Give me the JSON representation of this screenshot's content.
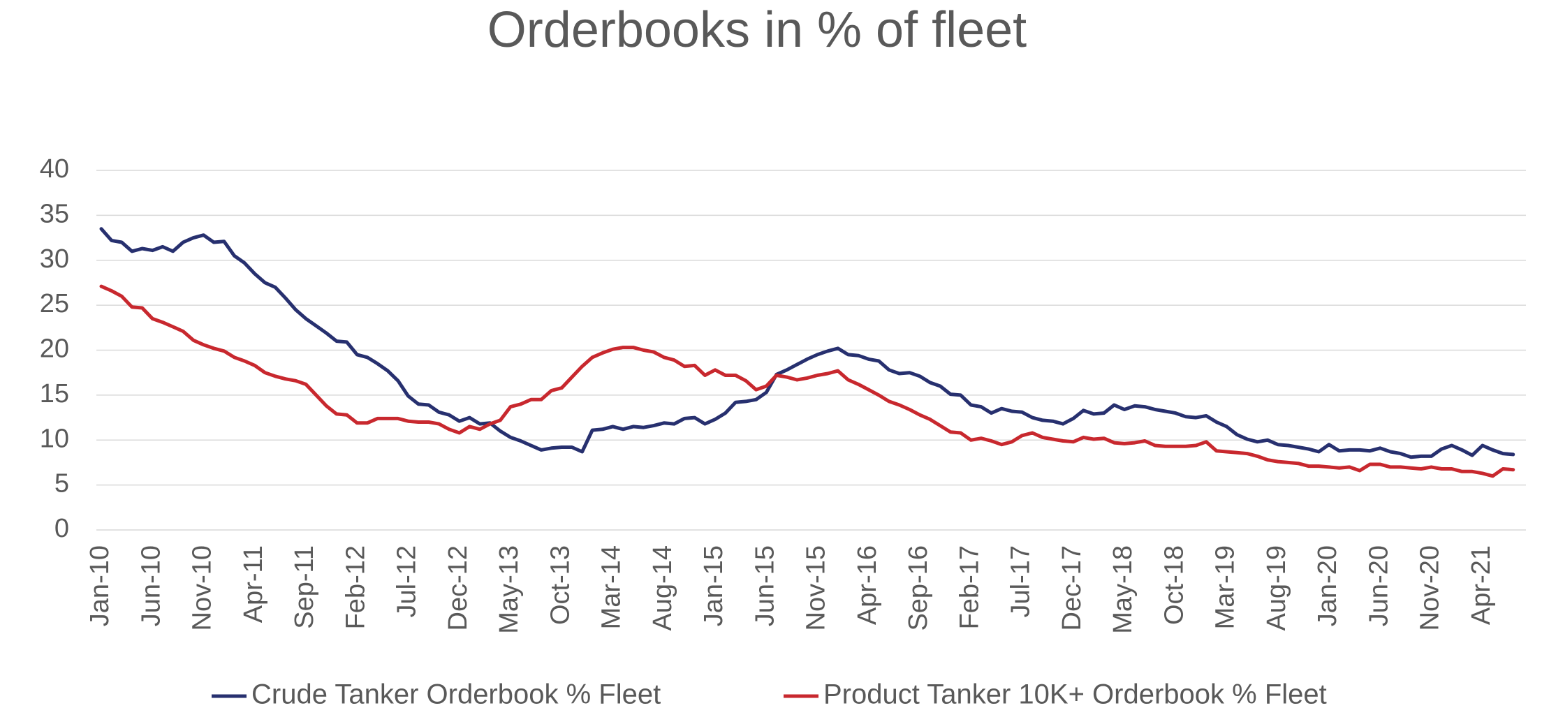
{
  "chart_data": {
    "type": "line",
    "title": "Orderbooks in % of fleet",
    "categories": [
      "Jan-10",
      null,
      null,
      null,
      null,
      "Jun-10",
      null,
      null,
      null,
      null,
      "Nov-10",
      null,
      null,
      null,
      null,
      "Apr-11",
      null,
      null,
      null,
      null,
      "Sep-11",
      null,
      null,
      null,
      null,
      "Feb-12",
      null,
      null,
      null,
      null,
      "Jul-12",
      null,
      null,
      null,
      null,
      "Dec-12",
      null,
      null,
      null,
      null,
      "May-13",
      null,
      null,
      null,
      null,
      "Oct-13",
      null,
      null,
      null,
      null,
      "Mar-14",
      null,
      null,
      null,
      null,
      "Aug-14",
      null,
      null,
      null,
      null,
      "Jan-15",
      null,
      null,
      null,
      null,
      "Jun-15",
      null,
      null,
      null,
      null,
      "Nov-15",
      null,
      null,
      null,
      null,
      "Apr-16",
      null,
      null,
      null,
      null,
      "Sep-16",
      null,
      null,
      null,
      null,
      "Feb-17",
      null,
      null,
      null,
      null,
      "Jul-17",
      null,
      null,
      null,
      null,
      "Dec-17",
      null,
      null,
      null,
      null,
      "May-18",
      null,
      null,
      null,
      null,
      "Oct-18",
      null,
      null,
      null,
      null,
      "Mar-19",
      null,
      null,
      null,
      null,
      "Aug-19",
      null,
      null,
      null,
      null,
      "Jan-20",
      null,
      null,
      null,
      null,
      "Jun-20",
      null,
      null,
      null,
      null,
      "Nov-20",
      null,
      null,
      null,
      null,
      "Apr-21",
      null,
      null,
      null
    ],
    "series": [
      {
        "name": "Crude Tanker Orderbook % Fleet",
        "color": "#27306f",
        "values": [
          33.5,
          32.2,
          32.0,
          31.0,
          31.3,
          31.1,
          31.5,
          31.0,
          32.0,
          32.5,
          32.8,
          32.0,
          32.1,
          30.5,
          29.7,
          28.5,
          27.5,
          27.0,
          25.8,
          24.5,
          23.5,
          22.7,
          21.9,
          21.0,
          20.9,
          19.5,
          19.2,
          18.5,
          17.7,
          16.6,
          14.9,
          14.0,
          13.9,
          13.1,
          12.8,
          12.1,
          12.5,
          11.8,
          11.9,
          11.0,
          10.3,
          9.9,
          9.4,
          8.9,
          9.1,
          9.2,
          9.2,
          8.7,
          11.1,
          11.2,
          11.5,
          11.2,
          11.5,
          11.4,
          11.6,
          11.9,
          11.8,
          12.4,
          12.5,
          11.8,
          12.3,
          13.0,
          14.2,
          14.3,
          14.5,
          15.3,
          17.3,
          17.8,
          18.4,
          19.0,
          19.5,
          19.9,
          20.2,
          19.5,
          19.4,
          19.0,
          18.8,
          17.8,
          17.4,
          17.5,
          17.1,
          16.4,
          16.0,
          15.1,
          15.0,
          13.9,
          13.7,
          13.0,
          13.5,
          13.2,
          13.1,
          12.5,
          12.2,
          12.1,
          11.8,
          12.4,
          13.3,
          12.9,
          13.0,
          13.9,
          13.4,
          13.8,
          13.7,
          13.4,
          13.2,
          13.0,
          12.6,
          12.5,
          12.7,
          12.0,
          11.5,
          10.6,
          10.1,
          9.8,
          10.0,
          9.5,
          9.4,
          9.2,
          9.0,
          8.7,
          9.5,
          8.8,
          8.9,
          8.9,
          8.8,
          9.1,
          8.7,
          8.5,
          8.1,
          8.2,
          8.2,
          9.0,
          9.4,
          8.9,
          8.3,
          9.4,
          8.9,
          8.5,
          8.4
        ]
      },
      {
        "name": "Product Tanker 10K+ Orderbook % Fleet",
        "color": "#c8282e",
        "values": [
          27.1,
          26.6,
          26.0,
          24.8,
          24.7,
          23.5,
          23.1,
          22.6,
          22.1,
          21.1,
          20.6,
          20.2,
          19.9,
          19.2,
          18.8,
          18.3,
          17.5,
          17.1,
          16.8,
          16.6,
          16.2,
          15.0,
          13.8,
          12.9,
          12.8,
          11.9,
          11.9,
          12.4,
          12.4,
          12.4,
          12.1,
          12.0,
          12.0,
          11.8,
          11.2,
          10.8,
          11.5,
          11.2,
          11.8,
          12.2,
          13.7,
          14.0,
          14.5,
          14.5,
          15.5,
          15.8,
          17.0,
          18.2,
          19.2,
          19.7,
          20.1,
          20.3,
          20.3,
          20.0,
          19.8,
          19.2,
          18.9,
          18.2,
          18.3,
          17.2,
          17.8,
          17.2,
          17.2,
          16.6,
          15.6,
          16.0,
          17.2,
          17.0,
          16.7,
          16.9,
          17.2,
          17.4,
          17.7,
          16.7,
          16.2,
          15.6,
          15.0,
          14.3,
          13.9,
          13.4,
          12.8,
          12.3,
          11.6,
          10.9,
          10.8,
          10.0,
          10.2,
          9.9,
          9.5,
          9.8,
          10.5,
          10.8,
          10.3,
          10.1,
          9.9,
          9.8,
          10.3,
          10.1,
          10.2,
          9.7,
          9.6,
          9.7,
          9.9,
          9.4,
          9.3,
          9.3,
          9.3,
          9.4,
          9.8,
          8.8,
          8.7,
          8.6,
          8.5,
          8.2,
          7.8,
          7.6,
          7.5,
          7.4,
          7.1,
          7.1,
          7.0,
          6.9,
          7.0,
          6.6,
          7.3,
          7.3,
          7.0,
          7.0,
          6.9,
          6.8,
          7.0,
          6.8,
          6.8,
          6.5,
          6.5,
          6.3,
          6.0,
          6.8,
          6.7
        ]
      }
    ],
    "ylim": [
      0,
      40
    ],
    "yticks": [
      0,
      5,
      10,
      15,
      20,
      25,
      30,
      35,
      40
    ],
    "grid": true,
    "legend": "bottom"
  }
}
